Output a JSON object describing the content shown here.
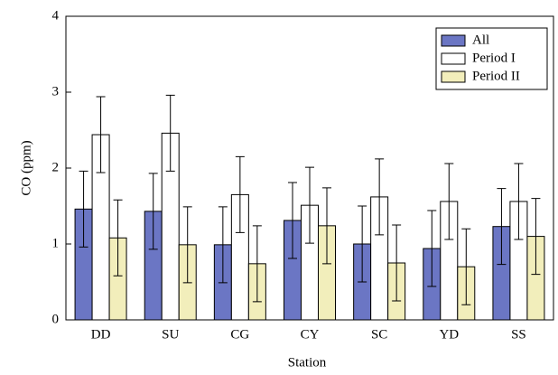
{
  "chart_data": {
    "type": "bar",
    "x_label": "Station",
    "y_label": "CO (ppm)",
    "categories": [
      "DD",
      "SU",
      "CG",
      "CY",
      "SC",
      "YD",
      "SS"
    ],
    "series": [
      {
        "name": "All",
        "color": "#6b76c4",
        "values": [
          1.46,
          1.43,
          0.99,
          1.31,
          1.0,
          0.94,
          1.23
        ],
        "errors": [
          0.5,
          0.5,
          0.5,
          0.5,
          0.5,
          0.5,
          0.5
        ]
      },
      {
        "name": "Period I",
        "color": "#ffffff",
        "values": [
          2.44,
          2.46,
          1.65,
          1.51,
          1.62,
          1.56,
          1.56
        ],
        "errors": [
          0.5,
          0.5,
          0.5,
          0.5,
          0.5,
          0.5,
          0.5
        ]
      },
      {
        "name": "Period II",
        "color": "#f2eebb",
        "values": [
          1.08,
          0.99,
          0.74,
          1.24,
          0.75,
          0.7,
          1.1
        ],
        "errors": [
          0.5,
          0.5,
          0.5,
          0.5,
          0.5,
          0.5,
          0.5
        ]
      }
    ],
    "ylim": [
      0,
      4
    ],
    "yticks": [
      0,
      1,
      2,
      3,
      4
    ],
    "grid": false,
    "legend": "top-right"
  }
}
